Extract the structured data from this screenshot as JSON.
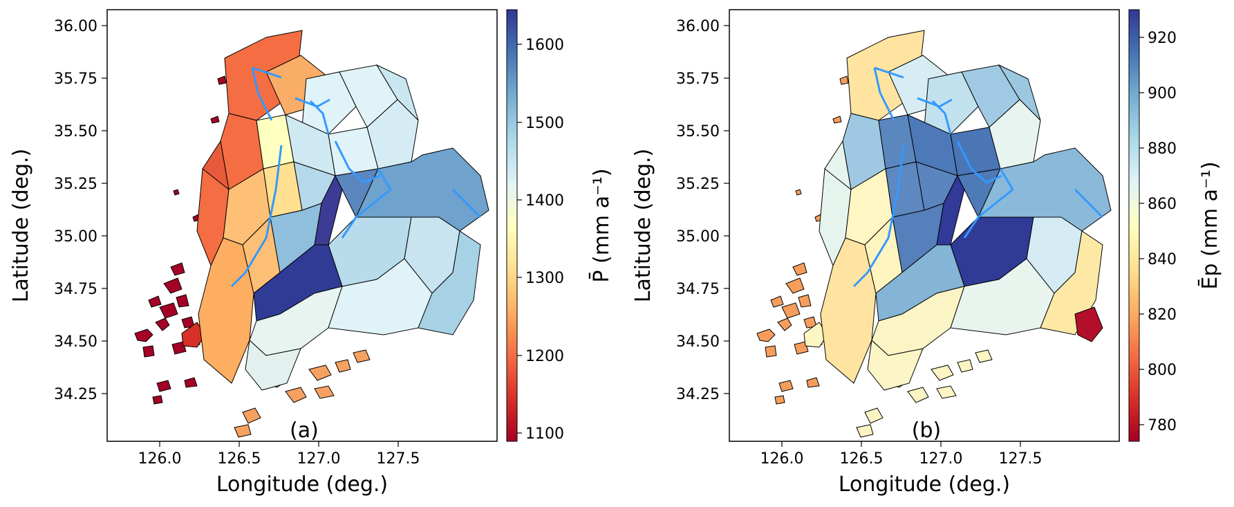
{
  "panels": [
    {
      "label": "(a)",
      "xlabel": "Longitude (deg.)",
      "ylabel": "Latitude (deg.)",
      "x_ticks": [
        "126.0",
        "126.5",
        "127.0",
        "127.5"
      ],
      "y_ticks": [
        "34.25",
        "34.50",
        "34.75",
        "35.00",
        "35.25",
        "35.50",
        "35.75",
        "36.00"
      ],
      "colorbar": {
        "label": "P̄ (mm a⁻¹)",
        "ticks": [
          "1100",
          "1200",
          "1300",
          "1400",
          "1500",
          "1600"
        ],
        "range": [
          1090,
          1645
        ],
        "colormap": "RdYlBu"
      }
    },
    {
      "label": "(b)",
      "xlabel": "Longitude (deg.)",
      "ylabel": "Latitude (deg.)",
      "x_ticks": [
        "126.0",
        "126.5",
        "127.0",
        "127.5"
      ],
      "y_ticks": [
        "34.25",
        "34.50",
        "34.75",
        "35.00",
        "35.25",
        "35.50",
        "35.75",
        "36.00"
      ],
      "colorbar": {
        "label": "Ēp (mm a⁻¹)",
        "ticks": [
          "780",
          "800",
          "820",
          "840",
          "860",
          "880",
          "900",
          "920"
        ],
        "range": [
          774,
          930
        ],
        "colormap": "RdYlBu"
      }
    }
  ],
  "colors": {
    "river": "#3399ff",
    "boundary": "#000000"
  }
}
